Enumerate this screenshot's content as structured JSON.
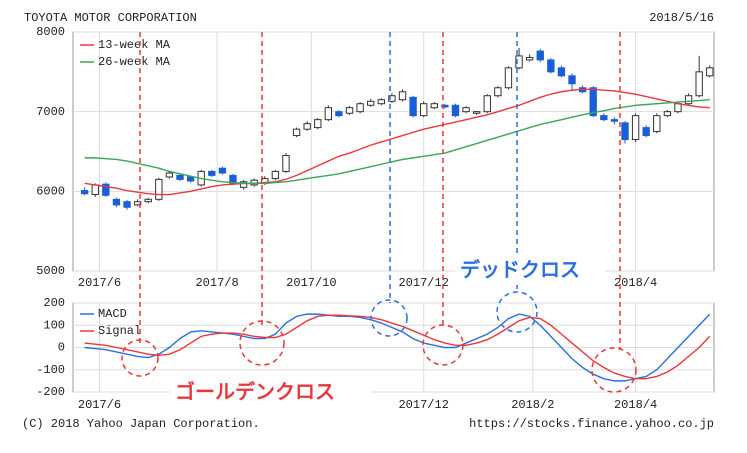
{
  "header": {
    "title": "TOYOTA MOTOR CORPORATION",
    "date": "2018/5/16"
  },
  "footer": {
    "copyright": "(C) 2018 Yahoo Japan Corporation.",
    "url": "https://stocks.finance.yahoo.co.jp"
  },
  "chart_data": [
    {
      "type": "candlestick",
      "xlim": [
        -1.1,
        59.4
      ],
      "xticks": [
        {
          "value": 1.4,
          "label": "2017/6"
        },
        {
          "value": 12.5,
          "label": "2017/8"
        },
        {
          "value": 21.4,
          "label": "2017/10"
        },
        {
          "value": 32,
          "label": "2017/12"
        },
        {
          "value": 52,
          "label": "2018/4"
        }
      ],
      "ylim": [
        5000,
        8000
      ],
      "yticks": [
        5000,
        6000,
        7000,
        8000
      ],
      "grid": true,
      "up_color": "#ffffff",
      "down_color": "#1a5fd6",
      "open": [
        6010,
        5960,
        6090,
        5900,
        5870,
        5830,
        5870,
        5900,
        6180,
        6200,
        6180,
        6080,
        6250,
        6290,
        6200,
        6050,
        6080,
        6100,
        6160,
        6250,
        6700,
        6780,
        6800,
        6900,
        7000,
        6980,
        7000,
        7080,
        7100,
        7130,
        7150,
        7180,
        6950,
        7050,
        7080,
        7080,
        7000,
        6980,
        7000,
        7200,
        7300,
        7550,
        7650,
        7760,
        7650,
        7550,
        7450,
        7300,
        7300,
        6950,
        6900,
        6860,
        6650,
        6800,
        6750,
        6950,
        7000,
        7100,
        7200,
        7450
      ],
      "high": [
        6050,
        6100,
        6110,
        5920,
        5890,
        5900,
        5920,
        6170,
        6260,
        6220,
        6200,
        6270,
        6270,
        6310,
        6220,
        6140,
        6160,
        6190,
        6270,
        6480,
        6800,
        6880,
        6920,
        7080,
        7020,
        7070,
        7120,
        7160,
        7170,
        7230,
        7280,
        7200,
        7130,
        7120,
        7100,
        7100,
        7070,
        7010,
        7220,
        7320,
        7570,
        7800,
        7720,
        7790,
        7670,
        7580,
        7480,
        7330,
        7320,
        6980,
        6930,
        6880,
        6980,
        6830,
        6980,
        7020,
        7130,
        7230,
        7700,
        7580
      ],
      "low": [
        5950,
        5930,
        5930,
        5800,
        5770,
        5810,
        5850,
        5880,
        6160,
        6130,
        6110,
        6060,
        6180,
        6210,
        6080,
        6020,
        6060,
        6080,
        6140,
        6230,
        6680,
        6760,
        6780,
        6880,
        6930,
        6960,
        6980,
        7060,
        7080,
        7110,
        7130,
        6930,
        6930,
        7030,
        7040,
        6930,
        6980,
        6960,
        6980,
        7180,
        7280,
        7530,
        7630,
        7620,
        7480,
        7430,
        7260,
        7230,
        6930,
        6880,
        6840,
        6600,
        6620,
        6680,
        6730,
        6930,
        6980,
        7080,
        7180,
        7430
      ],
      "close": [
        5970,
        6080,
        5950,
        5830,
        5800,
        5870,
        5900,
        6150,
        6230,
        6150,
        6130,
        6250,
        6200,
        6230,
        6100,
        6120,
        6140,
        6160,
        6250,
        6450,
        6780,
        6850,
        6900,
        7050,
        6950,
        7050,
        7100,
        7130,
        7150,
        7200,
        7250,
        6950,
        7100,
        7100,
        7060,
        6950,
        7050,
        7000,
        7200,
        7300,
        7550,
        7700,
        7680,
        7650,
        7500,
        7450,
        7350,
        7250,
        6950,
        6900,
        6880,
        6650,
        6950,
        6700,
        6950,
        7000,
        7100,
        7200,
        7500,
        7550
      ],
      "series": [
        {
          "name": "13-week MA",
          "color": "#e8383d",
          "values": [
            6100,
            6080,
            6060,
            6040,
            6010,
            5990,
            5970,
            5960,
            5960,
            5980,
            6000,
            6030,
            6060,
            6080,
            6090,
            6100,
            6100,
            6110,
            6120,
            6150,
            6200,
            6260,
            6320,
            6380,
            6440,
            6480,
            6530,
            6580,
            6620,
            6660,
            6700,
            6740,
            6780,
            6810,
            6840,
            6870,
            6900,
            6930,
            6960,
            7000,
            7040,
            7080,
            7130,
            7180,
            7220,
            7250,
            7270,
            7280,
            7280,
            7270,
            7260,
            7240,
            7220,
            7190,
            7160,
            7130,
            7100,
            7080,
            7060,
            7050
          ]
        },
        {
          "name": "26-week MA",
          "color": "#3aa657",
          "values": [
            6420,
            6420,
            6410,
            6400,
            6380,
            6350,
            6320,
            6290,
            6250,
            6220,
            6190,
            6160,
            6140,
            6120,
            6110,
            6100,
            6100,
            6100,
            6110,
            6120,
            6140,
            6160,
            6180,
            6200,
            6220,
            6250,
            6280,
            6310,
            6340,
            6370,
            6400,
            6420,
            6440,
            6460,
            6480,
            6520,
            6560,
            6600,
            6640,
            6680,
            6720,
            6760,
            6800,
            6840,
            6870,
            6900,
            6930,
            6960,
            6990,
            7010,
            7040,
            7060,
            7080,
            7090,
            7100,
            7110,
            7120,
            7130,
            7140,
            7150
          ]
        }
      ],
      "annotation": "デッドクロス"
    },
    {
      "type": "line",
      "xlim": [
        -1.1,
        59.4
      ],
      "xticks": [
        {
          "value": 1.4,
          "label": "2017/6"
        },
        {
          "value": 32,
          "label": "2017/12"
        },
        {
          "value": 42.3,
          "label": "2018/2"
        },
        {
          "value": 52,
          "label": "2018/4"
        }
      ],
      "ylim": [
        -200,
        200
      ],
      "yticks": [
        200,
        100,
        0,
        -100,
        -200
      ],
      "grid": true,
      "series": [
        {
          "name": "MACD",
          "color": "#2a6fe0",
          "values": [
            0,
            -5,
            -10,
            -20,
            -30,
            -40,
            -45,
            -30,
            0,
            40,
            70,
            75,
            70,
            65,
            60,
            50,
            40,
            40,
            60,
            110,
            140,
            150,
            150,
            145,
            140,
            140,
            135,
            125,
            110,
            90,
            70,
            40,
            20,
            10,
            0,
            0,
            20,
            40,
            60,
            90,
            130,
            150,
            140,
            100,
            50,
            0,
            -50,
            -90,
            -120,
            -140,
            -150,
            -150,
            -140,
            -130,
            -100,
            -50,
            0,
            50,
            100,
            150
          ]
        },
        {
          "name": "Signal",
          "color": "#e8383d",
          "values": [
            20,
            15,
            10,
            0,
            -10,
            -20,
            -30,
            -35,
            -30,
            -10,
            20,
            50,
            60,
            65,
            65,
            60,
            50,
            45,
            45,
            60,
            90,
            120,
            140,
            145,
            145,
            142,
            140,
            135,
            125,
            110,
            95,
            75,
            55,
            35,
            20,
            10,
            10,
            20,
            35,
            60,
            90,
            120,
            135,
            130,
            100,
            60,
            20,
            -20,
            -60,
            -90,
            -115,
            -130,
            -140,
            -140,
            -130,
            -110,
            -80,
            -40,
            0,
            50
          ]
        }
      ],
      "annotation": "ゴールデンクロス"
    }
  ]
}
